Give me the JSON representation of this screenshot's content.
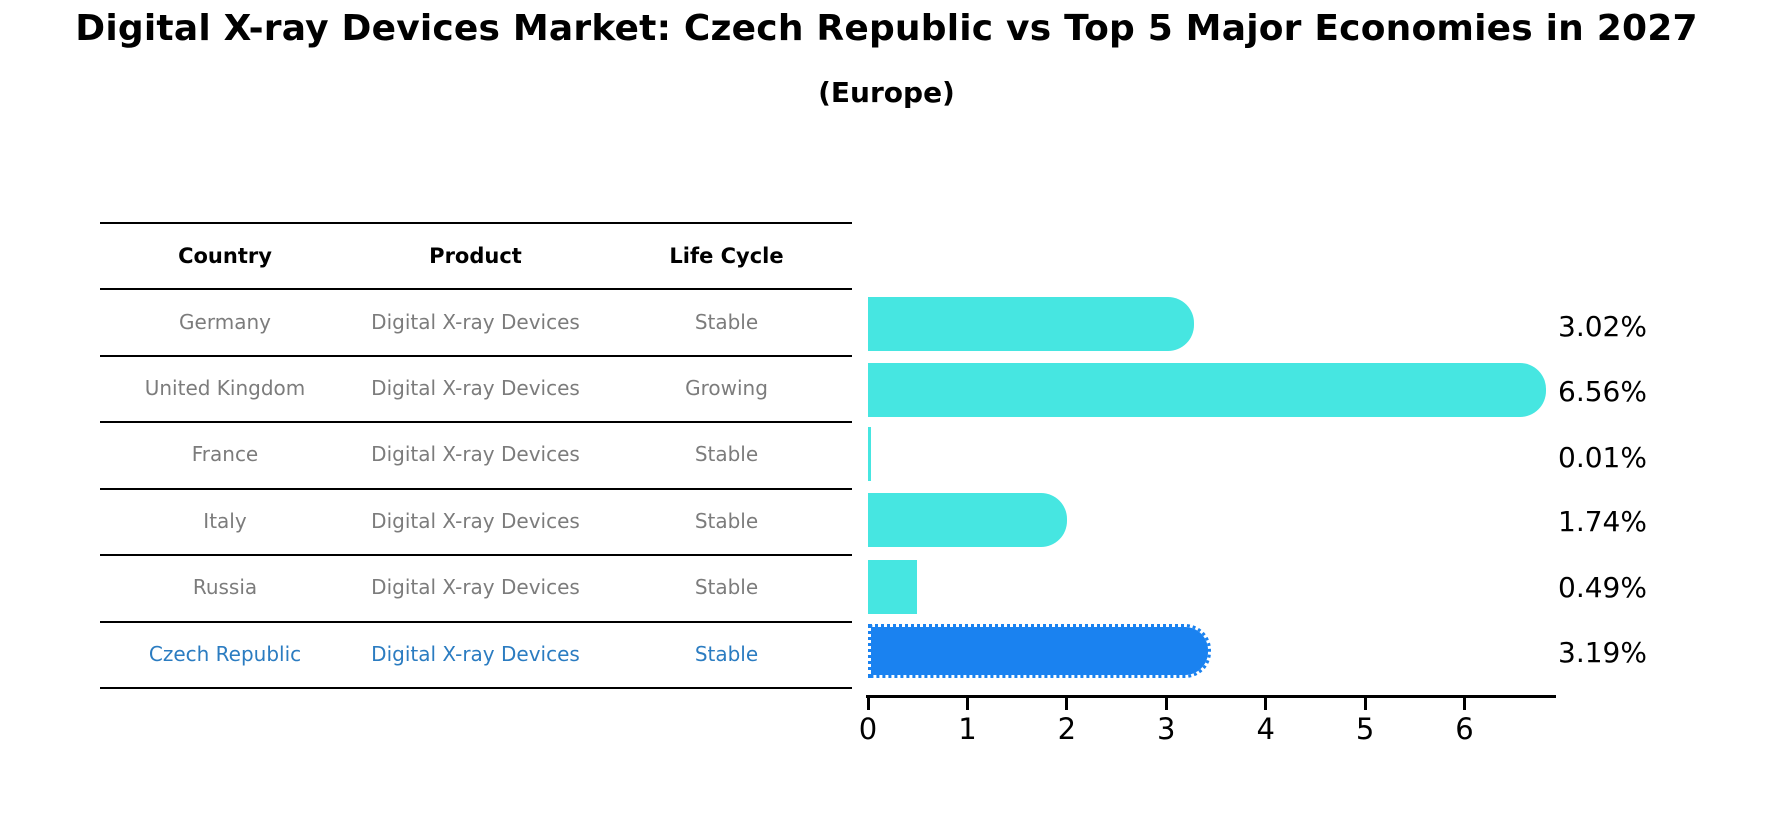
{
  "chart_data": {
    "type": "bar",
    "orientation": "horizontal",
    "title": "Digital X-ray Devices Market: Czech Republic vs Top 5 Major Economies in 2027",
    "subtitle": "(Europe)",
    "categories": [
      "Germany",
      "United Kingdom",
      "France",
      "Italy",
      "Russia",
      "Czech Republic"
    ],
    "values": [
      3.02,
      6.56,
      0.01,
      1.74,
      0.49,
      3.19
    ],
    "value_labels": [
      "3.02%",
      "6.56%",
      "0.01%",
      "1.74%",
      "0.49%",
      "3.19%"
    ],
    "unit": "%",
    "xlim": [
      0,
      6.92
    ],
    "x_ticks": [
      0,
      1,
      2,
      3,
      4,
      5,
      6
    ],
    "grid": false,
    "legend": "none",
    "bar_color": "#46E6E1",
    "highlight_color": "#1A82F0",
    "highlight_index": 5,
    "highlight_style": "dotted-border"
  },
  "table": {
    "headers": [
      "Country",
      "Product",
      "Life Cycle"
    ],
    "rows": [
      {
        "country": "Germany",
        "product": "Digital X-ray Devices",
        "life_cycle": "Stable"
      },
      {
        "country": "United Kingdom",
        "product": "Digital X-ray Devices",
        "life_cycle": "Growing"
      },
      {
        "country": "France",
        "product": "Digital X-ray Devices",
        "life_cycle": "Stable"
      },
      {
        "country": "Italy",
        "product": "Digital X-ray Devices",
        "life_cycle": "Stable"
      },
      {
        "country": "Russia",
        "product": "Digital X-ray Devices",
        "life_cycle": "Stable"
      },
      {
        "country": "Czech Republic",
        "product": "Digital X-ray Devices",
        "life_cycle": "Stable"
      }
    ],
    "highlight_row": "Czech Republic"
  },
  "colors": {
    "row_text": "#7C7C7C",
    "header_text": "#000000",
    "highlight_text": "#2B7CC1",
    "axis": "#000000",
    "background": "#FFFFFF"
  }
}
